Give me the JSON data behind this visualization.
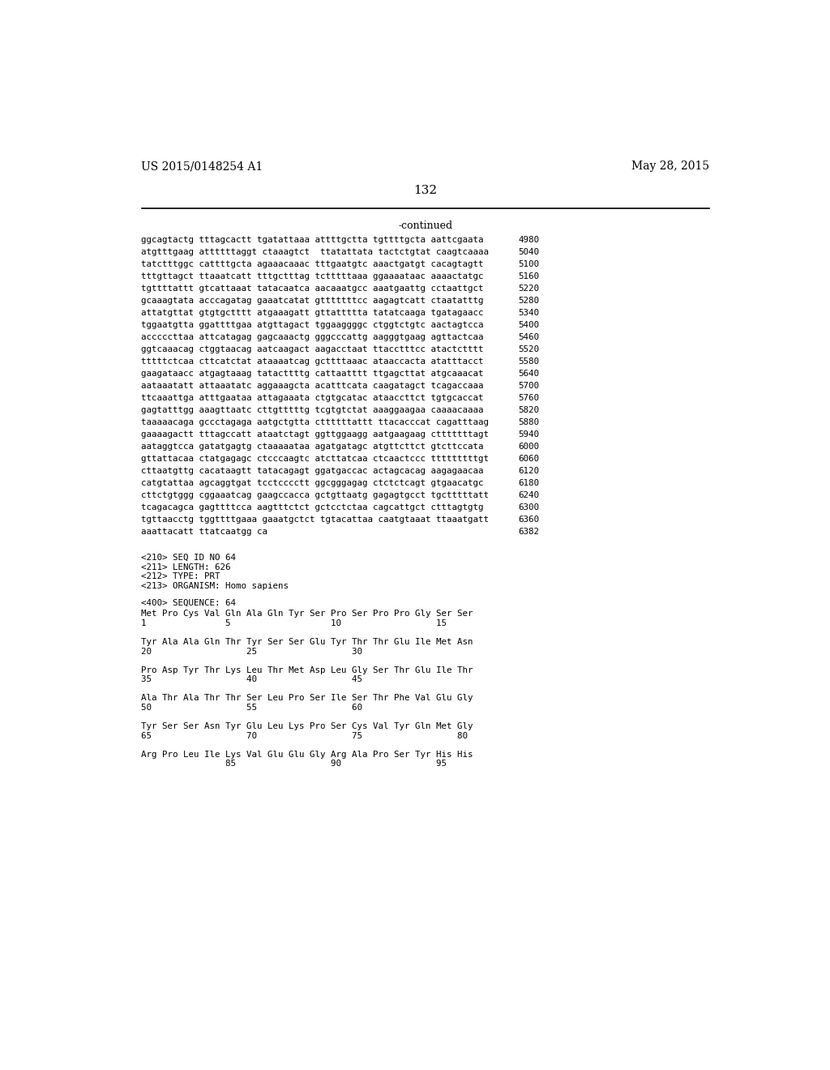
{
  "top_left_text": "US 2015/0148254 A1",
  "top_right_text": "May 28, 2015",
  "page_number": "132",
  "continued_label": "-continued",
  "background_color": "#ffffff",
  "text_color": "#000000",
  "sequence_lines": [
    [
      "ggcagtactg tttagcactt tgatattaaa attttgctta tgttttgcta aattcgaata",
      "4980"
    ],
    [
      "atgtttgaag attttttaggt ctaaagtct  ttatattata tactctgtat caagtcaaaa",
      "5040"
    ],
    [
      "tatctttggc cattttgcta agaaacaaac tttgaatgtc aaactgatgt cacagtagtt",
      "5100"
    ],
    [
      "tttgttagct ttaaatcatt tttgctttag tctttttaaa ggaaaataac aaaactatgc",
      "5160"
    ],
    [
      "tgttttattt gtcattaaat tatacaatca aacaaatgcc aaatgaattg cctaattgct",
      "5220"
    ],
    [
      "gcaaagtata acccagatag gaaatcatat gtttttttcc aagagtcatt ctaatatttg",
      "5280"
    ],
    [
      "attatgttat gtgtgctttt atgaaagatt gttattttta tatatcaaga tgatagaacc",
      "5340"
    ],
    [
      "tggaatgtta ggattttgaa atgttagact tggaaggggc ctggtctgtc aactagtcca",
      "5400"
    ],
    [
      "acccccttaa attcatagag gagcaaactg gggcccattg aagggtgaag agttactcaa",
      "5460"
    ],
    [
      "ggtcaaacag ctggtaacag aatcaagact aagacctaat ttacctttcc atactctttt",
      "5520"
    ],
    [
      "tttttctcaa cttcatctat ataaaatcag gcttttaaac ataaccacta atatttacct",
      "5580"
    ],
    [
      "gaagataacc atgagtaaag tatacttttg cattaatttt ttgagcttat atgcaaacat",
      "5640"
    ],
    [
      "aataaatatt attaaatatc aggaaagcta acatttcata caagatagct tcagaccaaa",
      "5700"
    ],
    [
      "ttcaaattga atttgaataa attagaaata ctgtgcatac ataaccttct tgtgcaccat",
      "5760"
    ],
    [
      "gagtatttgg aaagttaatc cttgtttttg tcgtgtctat aaaggaagaa caaaacaaaa",
      "5820"
    ],
    [
      "taaaaacaga gccctagaga aatgctgtta cttttttattt ttacacccat cagatttaag",
      "5880"
    ],
    [
      "gaaaagactt tttagccatt ataatctagt ggttggaagg aatgaagaag ctttttttagt",
      "5940"
    ],
    [
      "aataggtcca gatatgagtg ctaaaaataa agatgatagc atgttcttct gtcttccata",
      "6000"
    ],
    [
      "gttattacaa ctatgagagc ctcccaagtc atcttatcaa ctcaactccc tttttttttgt",
      "6060"
    ],
    [
      "cttaatgttg cacataagtt tatacagagt ggatgaccac actagcacag aagagaacaa",
      "6120"
    ],
    [
      "catgtattaa agcaggtgat tcctcccctt ggcgggagag ctctctcagt gtgaacatgc",
      "6180"
    ],
    [
      "cttctgtggg cggaaatcag gaagccacca gctgttaatg gagagtgcct tgctttttatt",
      "6240"
    ],
    [
      "tcagacagca gagttttcca aagtttctct gctcctctaa cagcattgct ctttagtgtg",
      "6300"
    ],
    [
      "tgttaacctg tggttttgaaa gaaatgctct tgtacattaa caatgtaaat ttaaatgatt",
      "6360"
    ],
    [
      "aaattacatt ttatcaatgg ca",
      "6382"
    ]
  ],
  "metadata_lines": [
    "<210> SEQ ID NO 64",
    "<211> LENGTH: 626",
    "<212> TYPE: PRT",
    "<213> ORGANISM: Homo sapiens"
  ],
  "sequence_label": "<400> SEQUENCE: 64",
  "protein_lines": [
    "Met Pro Cys Val Gln Ala Gln Tyr Ser Pro Ser Pro Pro Gly Ser Ser",
    "1               5                   10                  15",
    "",
    "Tyr Ala Ala Gln Thr Tyr Ser Ser Glu Tyr Thr Thr Glu Ile Met Asn",
    "20                  25                  30",
    "",
    "Pro Asp Tyr Thr Lys Leu Thr Met Asp Leu Gly Ser Thr Glu Ile Thr",
    "35                  40                  45",
    "",
    "Ala Thr Ala Thr Thr Ser Leu Pro Ser Ile Ser Thr Phe Val Glu Gly",
    "50                  55                  60",
    "",
    "Tyr Ser Ser Asn Tyr Glu Leu Lys Pro Ser Cys Val Tyr Gln Met Gly",
    "65                  70                  75                  80",
    "",
    "Arg Pro Leu Ile Lys Val Glu Glu Gly Arg Ala Pro Ser Tyr His His",
    "                85                  90                  95"
  ]
}
